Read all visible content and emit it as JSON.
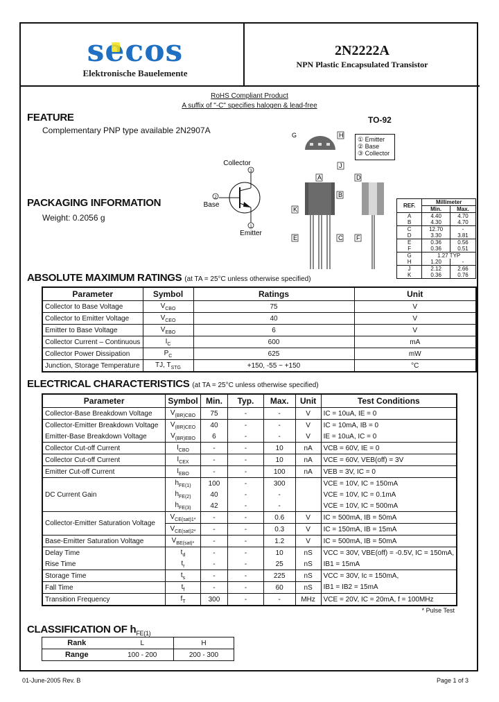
{
  "header": {
    "logo_text": "secos",
    "logo_subtitle": "Elektronische Bauelemente",
    "part_number": "2N2222A",
    "description": "NPN Plastic Encapsulated Transistor",
    "rohs": "RoHS Compliant Product",
    "suffix_note": "A suffix of \"-C\" specifies halogen & lead-free"
  },
  "feature": {
    "title": "FEATURE",
    "text": "Complementary PNP type available 2N2907A"
  },
  "packaging": {
    "title": "PACKAGING INFORMATION",
    "weight": "Weight: 0.2056 g"
  },
  "symbol_diagram": {
    "collector": "Collector",
    "base": "Base",
    "emitter": "Emitter",
    "pin_collector": "3",
    "pin_base": "2",
    "pin_emitter": "1"
  },
  "package": {
    "name": "TO-92",
    "legend": [
      "① Emitter",
      "② Base",
      "③ Collector"
    ],
    "labels": {
      "A": "A",
      "B": "B",
      "C": "C",
      "D": "D",
      "E": "E",
      "F": "F",
      "G": "G",
      "H": "H",
      "J": "J",
      "K": "K"
    },
    "dim_table": {
      "ref_header": "REF.",
      "unit_header": "Millimeter",
      "min_header": "Min.",
      "max_header": "Max.",
      "rows": [
        {
          "ref": "A",
          "min": "4.40",
          "max": "4.70"
        },
        {
          "ref": "B",
          "min": "4.30",
          "max": "4.70"
        },
        {
          "ref": "C",
          "min": "12.70",
          "max": "-"
        },
        {
          "ref": "D",
          "min": "3.30",
          "max": "3.81"
        },
        {
          "ref": "E",
          "min": "0.36",
          "max": "0.56"
        },
        {
          "ref": "F",
          "min": "0.36",
          "max": "0.51"
        },
        {
          "ref": "G",
          "typ": "1.27 TYP"
        },
        {
          "ref": "H",
          "min": "1.20",
          "max": "-"
        },
        {
          "ref": "J",
          "min": "2.12",
          "max": "2.66"
        },
        {
          "ref": "K",
          "min": "0.36",
          "max": "0.76"
        }
      ]
    }
  },
  "abs_max": {
    "title": "ABSOLUTE MAXIMUM RATINGS",
    "condition": "(at TA = 25°C unless otherwise specified)",
    "headers": [
      "Parameter",
      "Symbol",
      "Ratings",
      "Unit"
    ],
    "rows": [
      {
        "param": "Collector to Base Voltage",
        "sym": "V",
        "sub": "CBO",
        "rating": "75",
        "unit": "V"
      },
      {
        "param": "Collector to Emitter Voltage",
        "sym": "V",
        "sub": "CEO",
        "rating": "40",
        "unit": "V"
      },
      {
        "param": "Emitter to Base Voltage",
        "sym": "V",
        "sub": "EBO",
        "rating": "6",
        "unit": "V"
      },
      {
        "param": "Collector Current – Continuous",
        "sym": "I",
        "sub": "C",
        "rating": "600",
        "unit": "mA"
      },
      {
        "param": "Collector Power Dissipation",
        "sym": "P",
        "sub": "C",
        "rating": "625",
        "unit": "mW"
      },
      {
        "param": "Junction, Storage Temperature",
        "sym": "TJ, T",
        "sub": "STG",
        "rating": "+150, -55 ~ +150",
        "unit": "°C"
      }
    ]
  },
  "electrical": {
    "title": "ELECTRICAL CHARACTERISTICS",
    "condition": "(at TA = 25°C unless otherwise specified)",
    "headers": [
      "Parameter",
      "Symbol",
      "Min.",
      "Typ.",
      "Max.",
      "Unit",
      "Test Conditions"
    ],
    "rows": [
      {
        "param": "Collector-Base Breakdown Voltage",
        "sym": "V",
        "sub": "(BR)CBO",
        "min": "75",
        "typ": "-",
        "max": "-",
        "unit": "V",
        "cond": "IC = 10uA, IE = 0"
      },
      {
        "param": "Collector-Emitter Breakdown Voltage",
        "sym": "V",
        "sub": "(BR)CEO",
        "min": "40",
        "typ": "-",
        "max": "-",
        "unit": "V",
        "cond": "IC = 10mA, IB = 0"
      },
      {
        "param": "Emitter-Base Breakdown Voltage",
        "sym": "V",
        "sub": "(BR)EBO",
        "min": "6",
        "typ": "-",
        "max": "-",
        "unit": "V",
        "cond": "IE = 10uA, IC = 0"
      },
      {
        "param": "Collector Cut-off Current",
        "sym": "I",
        "sub": "CBO",
        "min": "-",
        "typ": "-",
        "max": "10",
        "unit": "nA",
        "cond": "VCB = 60V, IE = 0"
      },
      {
        "param": "Collector Cut-off Current",
        "sym": "I",
        "sub": "CEX",
        "min": "-",
        "typ": "-",
        "max": "10",
        "unit": "nA",
        "cond": "VCE = 60V, VEB(off) = 3V"
      },
      {
        "param": "Emitter Cut-off Current",
        "sym": "I",
        "sub": "EBO",
        "min": "-",
        "typ": "-",
        "max": "100",
        "unit": "nA",
        "cond": "VEB = 3V, IC = 0"
      },
      {
        "param": "DC Current Gain",
        "sym": "h",
        "sub": "FE(1)",
        "min": "100",
        "typ": "-",
        "max": "300",
        "unit": "",
        "cond": "VCE = 10V, IC = 150mA"
      },
      {
        "param": "",
        "sym": "h",
        "sub": "FE(2)",
        "min": "40",
        "typ": "-",
        "max": "-",
        "unit": "",
        "cond": "VCE = 10V, IC = 0.1mA"
      },
      {
        "param": "",
        "sym": "h",
        "sub": "FE(3)",
        "min": "42",
        "typ": "-",
        "max": "-",
        "unit": "",
        "cond": "VCE = 10V, IC = 500mA"
      },
      {
        "param": "Collector-Emitter Saturation Voltage",
        "sym": "V",
        "sub": "CE(sat)1*",
        "min": "-",
        "typ": "-",
        "max": "0.6",
        "unit": "V",
        "cond": "IC = 500mA, IB = 50mA"
      },
      {
        "param": "",
        "sym": "V",
        "sub": "CE(sat)2*",
        "min": "-",
        "typ": "-",
        "max": "0.3",
        "unit": "V",
        "cond": "IC = 150mA, IB = 15mA"
      },
      {
        "param": "Base-Emitter Saturation Voltage",
        "sym": "V",
        "sub": "BE(sat)*",
        "min": "-",
        "typ": "-",
        "max": "1.2",
        "unit": "V",
        "cond": "IC = 500mA, IB = 50mA"
      },
      {
        "param": "Delay Time",
        "sym": "t",
        "sub": "d",
        "min": "-",
        "typ": "-",
        "max": "10",
        "unit": "nS",
        "cond": "VCC = 30V, VBE(off) = -0.5V, IC = 150mA,"
      },
      {
        "param": "Rise Time",
        "sym": "t",
        "sub": "r",
        "min": "-",
        "typ": "-",
        "max": "25",
        "unit": "nS",
        "cond": "IB1 = 15mA"
      },
      {
        "param": "Storage Time",
        "sym": "t",
        "sub": "s",
        "min": "-",
        "typ": "-",
        "max": "225",
        "unit": "nS",
        "cond": "VCC = 30V, Ic = 150mA,"
      },
      {
        "param": "Fall Time",
        "sym": "t",
        "sub": "f",
        "min": "-",
        "typ": "-",
        "max": "60",
        "unit": "nS",
        "cond": "IB1 = IB2 = 15mA"
      },
      {
        "param": "Transition Frequency",
        "sym": "f",
        "sub": "T",
        "min": "300",
        "typ": "-",
        "max": "-",
        "unit": "MHz",
        "cond": "VCE = 20V, IC = 20mA, f = 100MHz"
      }
    ],
    "footnote": "* Pulse Test"
  },
  "classification": {
    "title": "CLASSIFICATION OF h",
    "title_sub": "FE(1)",
    "rank_label": "Rank",
    "range_label": "Range",
    "ranks": [
      "L",
      "H"
    ],
    "ranges": [
      "100 - 200",
      "200 - 300"
    ]
  },
  "footer": {
    "date_rev": "01-June-2005 Rev. B",
    "page": "Page 1 of 3"
  },
  "colors": {
    "logo_blue": "#1f6fc2",
    "logo_yellow": "#f2e21b"
  }
}
